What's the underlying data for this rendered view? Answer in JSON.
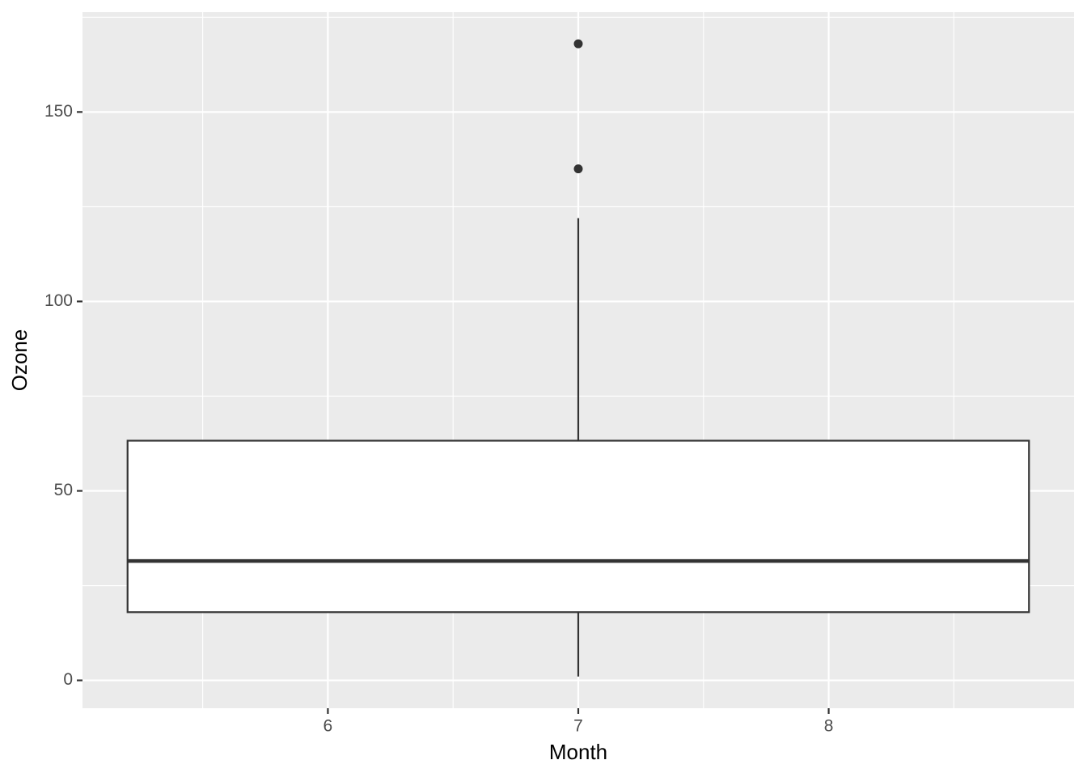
{
  "chart_data": {
    "type": "boxplot",
    "x_label": "Month",
    "y_label": "Ozone",
    "xlim": [
      5.02,
      8.98
    ],
    "ylim": [
      -7.35,
      176.35
    ],
    "xticks": [
      6,
      7,
      8
    ],
    "yticks": [
      0,
      50,
      100,
      150
    ],
    "x_minor_ticks": [
      5.5,
      6.5,
      7.5,
      8.5
    ],
    "y_minor_ticks": [
      25,
      75,
      125,
      175
    ],
    "grid": true,
    "box": {
      "x": 7,
      "xmin": 5.2,
      "xmax": 8.8,
      "lower_whisker": 1,
      "q1": 18,
      "median": 31.5,
      "q3": 63.25,
      "upper_whisker": 122,
      "outliers": [
        135,
        168
      ]
    }
  }
}
